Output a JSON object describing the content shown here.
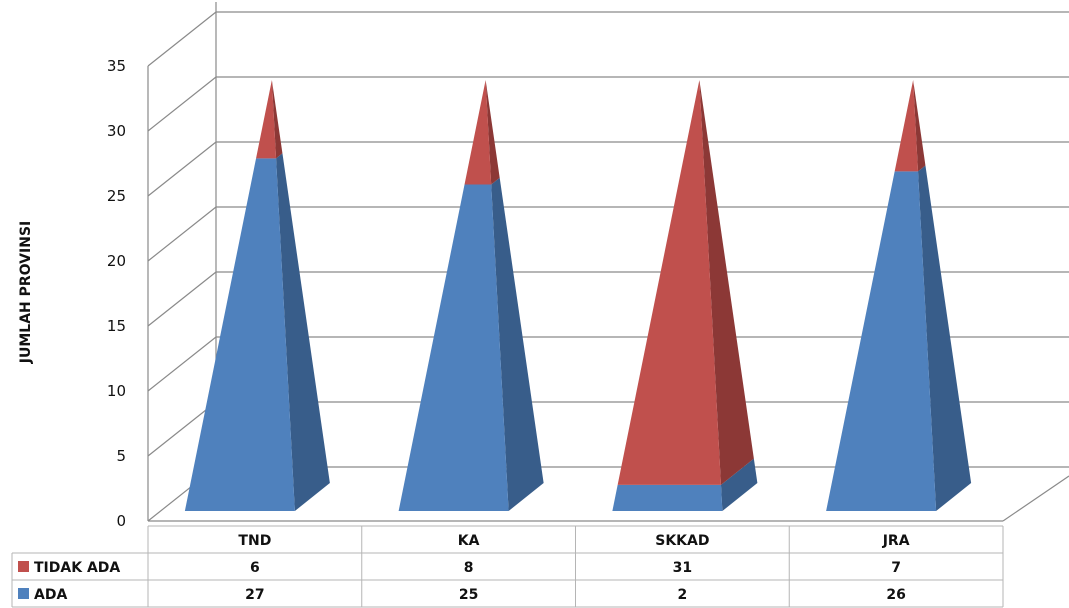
{
  "chart_data": {
    "type": "bar",
    "style": "3d-pyramid-stacked",
    "categories": [
      "TND",
      "KA",
      "SKKAD",
      "JRA"
    ],
    "series": [
      {
        "name": "ADA",
        "values": [
          27,
          25,
          2,
          26
        ],
        "color": "#4F81BD",
        "side_color": "#385D8A"
      },
      {
        "name": "TIDAK ADA",
        "values": [
          6,
          8,
          31,
          7
        ],
        "color": "#C0504D",
        "side_color": "#8C3836"
      }
    ],
    "ylabel": "JUMLAH PROVINSI",
    "ylim": [
      0,
      35
    ],
    "yticks": [
      0,
      5,
      10,
      15,
      20,
      25,
      30,
      35
    ],
    "grid": true,
    "data_table": true
  }
}
